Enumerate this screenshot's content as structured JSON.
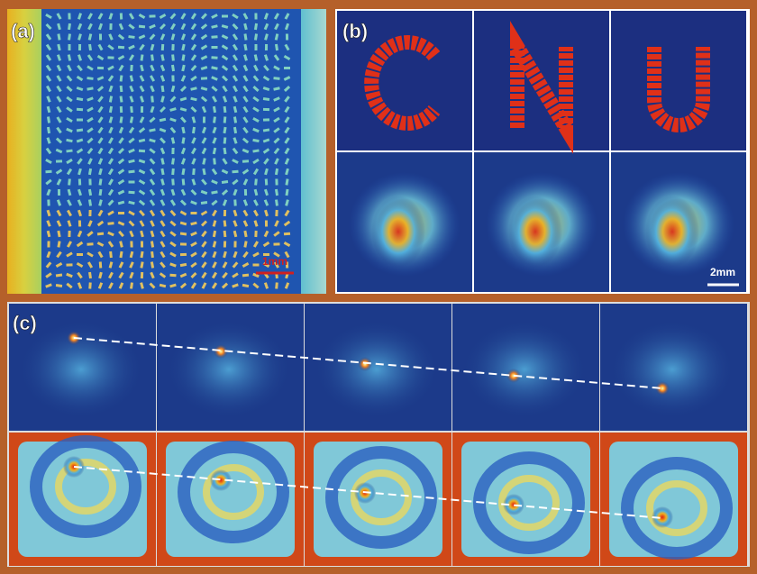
{
  "panels": {
    "a": {
      "label": "(a)",
      "scale_bar": "1mm"
    },
    "b": {
      "label": "(b)",
      "scale_bar": "2mm"
    },
    "c": {
      "label": "(c)"
    }
  }
}
